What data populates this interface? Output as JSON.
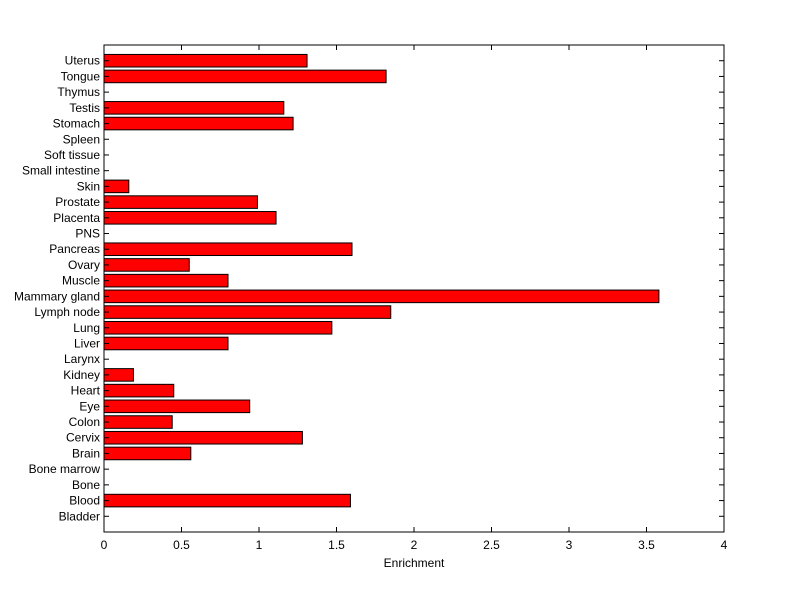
{
  "chart_data": {
    "type": "bar",
    "orientation": "horizontal",
    "categories": [
      "Bladder",
      "Blood",
      "Bone",
      "Bone marrow",
      "Brain",
      "Cervix",
      "Colon",
      "Eye",
      "Heart",
      "Kidney",
      "Larynx",
      "Liver",
      "Lung",
      "Lymph node",
      "Mammary gland",
      "Muscle",
      "Ovary",
      "Pancreas",
      "PNS",
      "Placenta",
      "Prostate",
      "Skin",
      "Small intestine",
      "Soft tissue",
      "Spleen",
      "Stomach",
      "Testis",
      "Thymus",
      "Tongue",
      "Uterus"
    ],
    "values": [
      0,
      1.59,
      0,
      0,
      0.56,
      1.28,
      0.44,
      0.94,
      0.45,
      0.19,
      0,
      0.8,
      1.47,
      1.85,
      3.58,
      0.8,
      0.55,
      1.6,
      0,
      1.11,
      0.99,
      0.16,
      0,
      0,
      0,
      1.22,
      1.16,
      0,
      1.82,
      1.31
    ],
    "xlabel": "Enrichment",
    "ylabel": "",
    "title": "",
    "xlim": [
      0,
      4
    ],
    "xticks": [
      "0",
      "0.5",
      "1",
      "1.5",
      "2",
      "2.5",
      "3",
      "3.5",
      "4"
    ],
    "grid": false,
    "bar_color": "#ff0000",
    "bar_edge_color": "#000000"
  }
}
